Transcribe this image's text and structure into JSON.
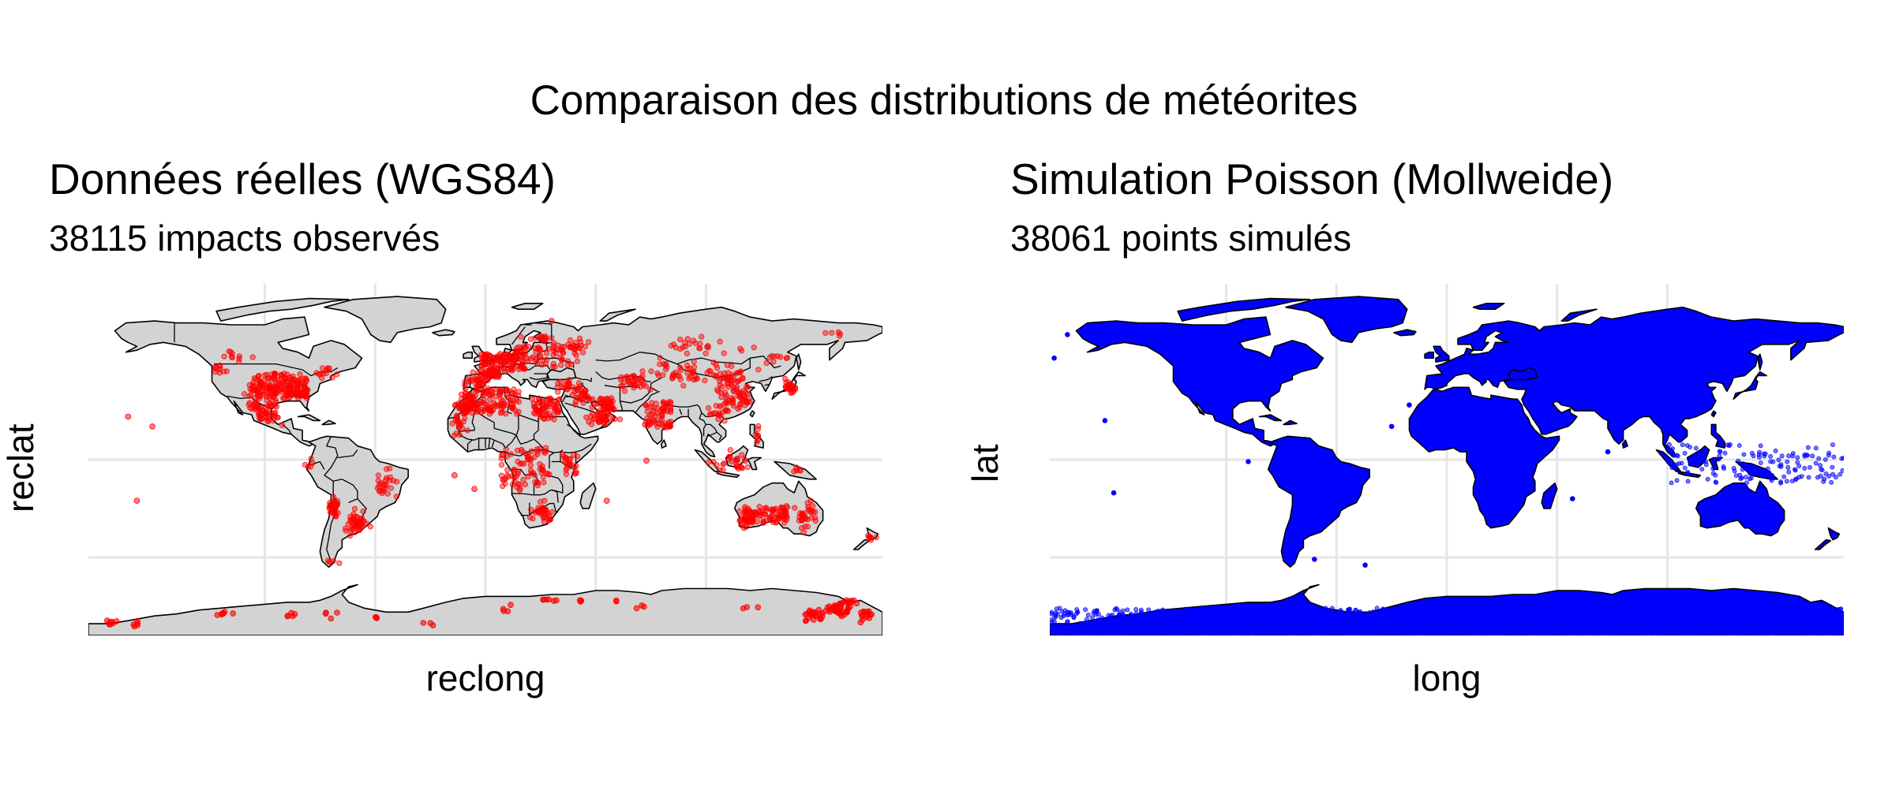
{
  "title": "Comparaison des distributions de météorites",
  "panels": [
    {
      "title": "Données réelles (WGS84)",
      "subtitle": "38115 impacts observés",
      "xlabel": "reclong",
      "ylabel": "reclat",
      "point_color": "#ff0000",
      "land_color": "#d3d3d3",
      "border_color": "#000000",
      "country_borders": true,
      "grid": true,
      "projection": "WGS84",
      "point_count": 38115
    },
    {
      "title": "Simulation Poisson (Mollweide)",
      "subtitle": "38061 points simulés",
      "xlabel": "long",
      "ylabel": "lat",
      "point_color": "#0000ff",
      "land_color": "#d3d3d3",
      "border_color": "#000000",
      "country_borders": false,
      "grid": true,
      "projection": "Mollweide",
      "point_count": 38061
    }
  ]
}
